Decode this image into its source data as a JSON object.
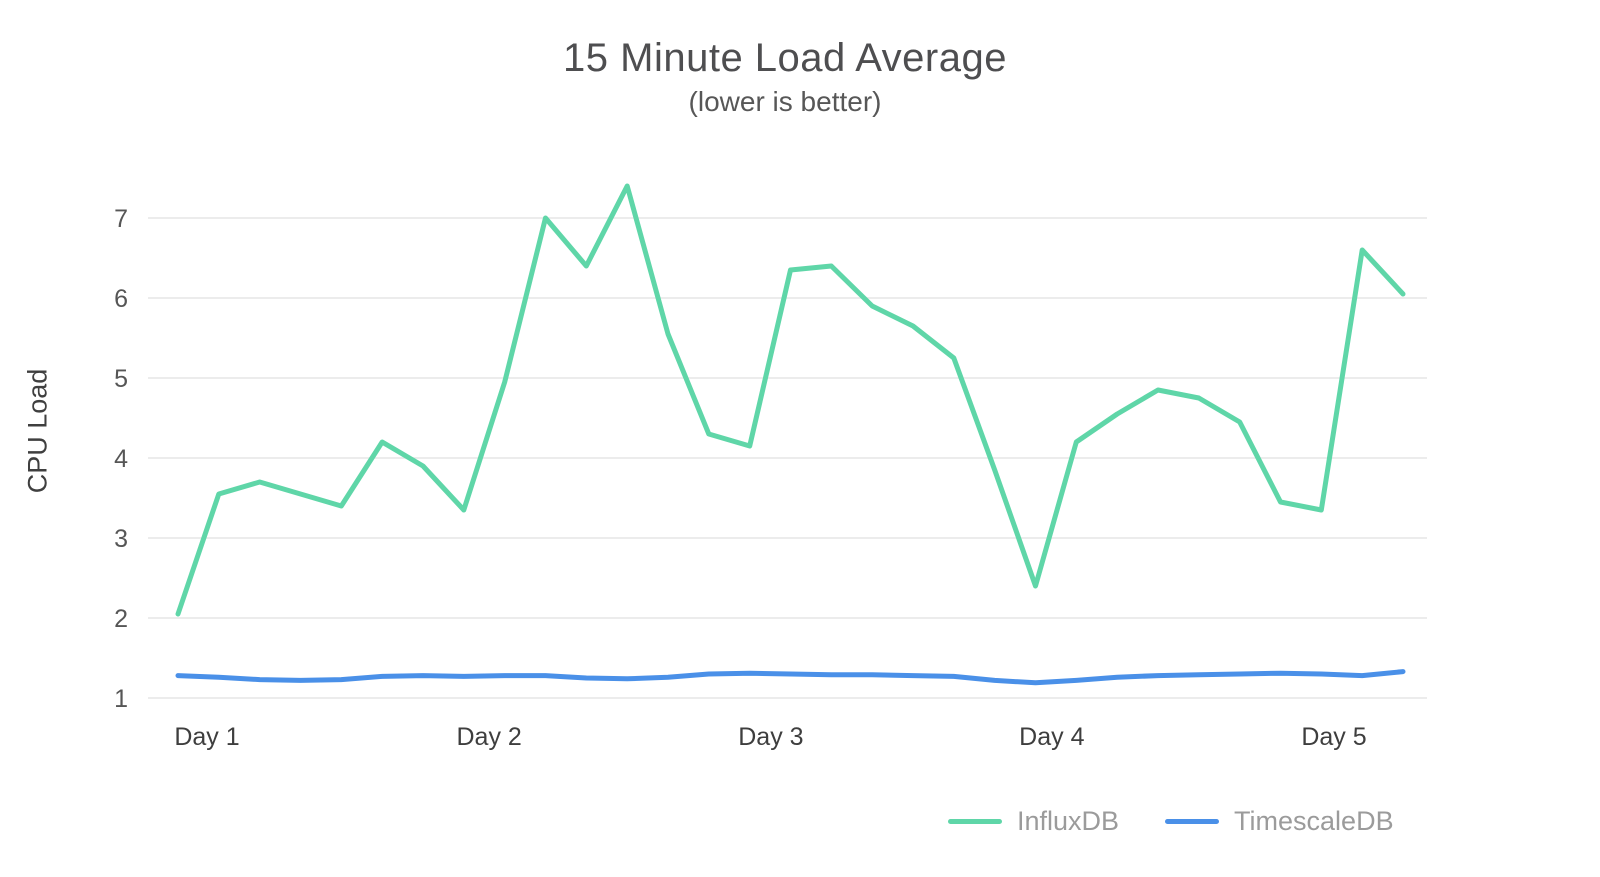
{
  "chart_data": {
    "type": "line",
    "title": "15 Minute Load Average",
    "subtitle": "(lower is better)",
    "ylabel": "CPU Load",
    "xlabel": "",
    "y_ticks": [
      1,
      2,
      3,
      4,
      5,
      6,
      7
    ],
    "ylim": [
      0.55,
      7.75
    ],
    "grid": true,
    "legend_position": "bottom-right",
    "x_day_labels": [
      {
        "label": "Day 1",
        "x": 0.71
      },
      {
        "label": "Day 2",
        "x": 7.62
      },
      {
        "label": "Day 3",
        "x": 14.52
      },
      {
        "label": "Day 4",
        "x": 21.4
      },
      {
        "label": "Day 5",
        "x": 28.31
      }
    ],
    "series": [
      {
        "name": "InfluxDB",
        "color": "#5fd6a8",
        "values": [
          2.05,
          3.55,
          3.7,
          3.55,
          3.4,
          4.2,
          3.9,
          3.35,
          4.95,
          7.0,
          6.4,
          7.4,
          5.55,
          4.3,
          4.15,
          6.35,
          6.4,
          5.9,
          5.65,
          5.25,
          3.85,
          2.4,
          4.2,
          4.55,
          4.85,
          4.75,
          4.45,
          3.45,
          3.35,
          6.6,
          6.05
        ]
      },
      {
        "name": "TimescaleDB",
        "color": "#4a90e8",
        "values": [
          1.28,
          1.26,
          1.23,
          1.22,
          1.23,
          1.27,
          1.28,
          1.27,
          1.28,
          1.28,
          1.25,
          1.24,
          1.26,
          1.3,
          1.31,
          1.3,
          1.29,
          1.29,
          1.28,
          1.27,
          1.22,
          1.19,
          1.22,
          1.26,
          1.28,
          1.29,
          1.3,
          1.31,
          1.3,
          1.28,
          1.33
        ]
      }
    ]
  }
}
